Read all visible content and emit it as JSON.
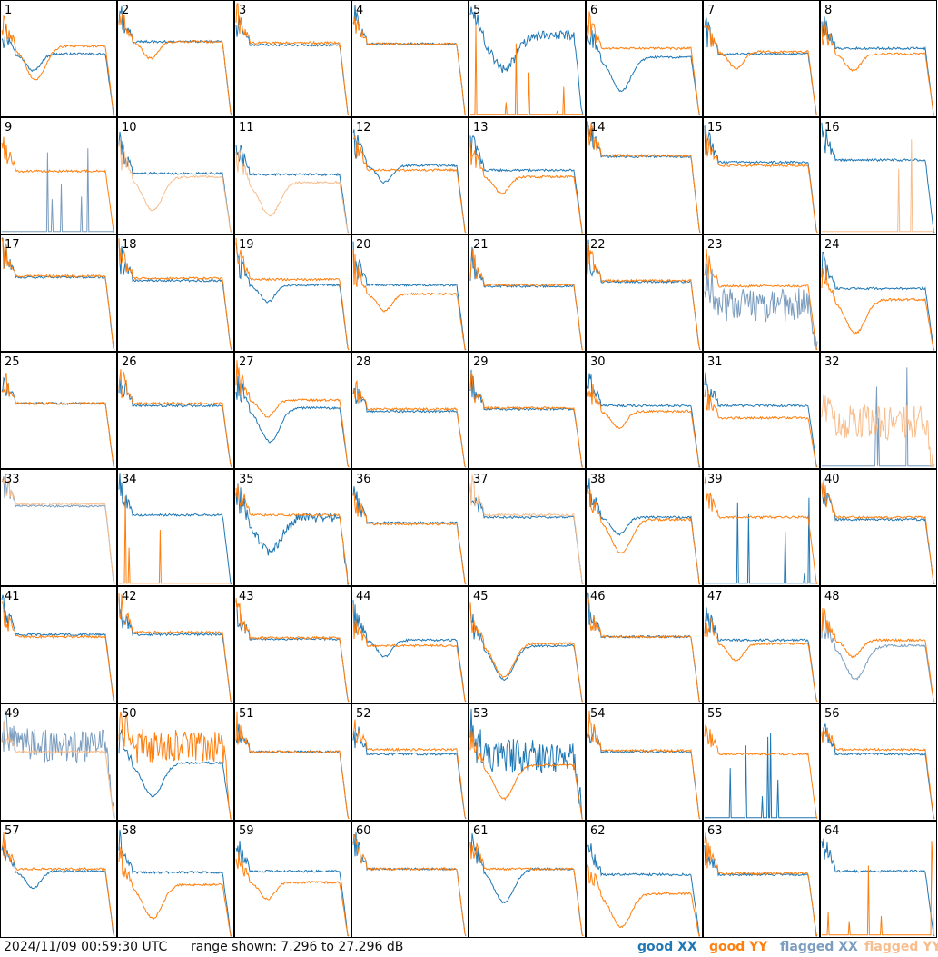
{
  "footer": {
    "timestamp": "2024/11/09 00:59:30 UTC",
    "range": "range shown: 7.296 to 27.296 dB"
  },
  "legend": [
    {
      "label": "good XX",
      "color": "#1f77b4"
    },
    {
      "label": "good YY",
      "color": "#ff7f0e"
    },
    {
      "label": "flagged XX",
      "color": "#7a9cbe"
    },
    {
      "label": "flagged YY",
      "color": "#f7bd8c"
    }
  ],
  "chart_data": {
    "type": "line",
    "grid": "8x8 small multiples",
    "ylim": [
      7.296,
      27.296
    ],
    "yunit": "dB",
    "antennas": [
      {
        "id": "1",
        "xx": "good",
        "yy": "good",
        "x_shape": "dip",
        "y_shape": "deep_dip",
        "x_level": 0.55,
        "y_level": 0.62
      },
      {
        "id": "2",
        "xx": "good",
        "yy": "good",
        "x_shape": "flat",
        "y_shape": "dip",
        "x_level": 0.66,
        "y_level": 0.66
      },
      {
        "id": "3",
        "xx": "good",
        "yy": "good",
        "x_shape": "flat",
        "y_shape": "flat",
        "x_level": 0.63,
        "y_level": 0.65
      },
      {
        "id": "4",
        "xx": "good",
        "yy": "good",
        "x_shape": "flat",
        "y_shape": "flat",
        "x_level": 0.64,
        "y_level": 0.64
      },
      {
        "id": "5",
        "xx": "good",
        "yy": "good",
        "x_shape": "wide_dip_noisy",
        "y_shape": "dead",
        "x_level": 0.72,
        "y_level": 0.0
      },
      {
        "id": "6",
        "xx": "good",
        "yy": "good",
        "x_shape": "deep_dip",
        "y_shape": "flat",
        "x_level": 0.52,
        "y_level": 0.6
      },
      {
        "id": "7",
        "xx": "good",
        "yy": "good",
        "x_shape": "flat",
        "y_shape": "dip",
        "x_level": 0.55,
        "y_level": 0.57
      },
      {
        "id": "8",
        "xx": "good",
        "yy": "good",
        "x_shape": "flat",
        "y_shape": "dip",
        "x_level": 0.6,
        "y_level": 0.55
      },
      {
        "id": "9",
        "xx": "flagged",
        "yy": "good",
        "x_shape": "dead",
        "y_shape": "flat",
        "x_level": 0.0,
        "y_level": 0.55
      },
      {
        "id": "10",
        "xx": "good",
        "yy": "flagged",
        "x_shape": "flat",
        "y_shape": "deep_dip",
        "x_level": 0.53,
        "y_level": 0.5
      },
      {
        "id": "11",
        "xx": "good",
        "yy": "flagged",
        "x_shape": "flat",
        "y_shape": "deep_dip",
        "x_level": 0.52,
        "y_level": 0.45
      },
      {
        "id": "12",
        "xx": "good",
        "yy": "good",
        "x_shape": "dip",
        "y_shape": "flat",
        "x_level": 0.6,
        "y_level": 0.56
      },
      {
        "id": "13",
        "xx": "good",
        "yy": "good",
        "x_shape": "flat",
        "y_shape": "dip",
        "x_level": 0.56,
        "y_level": 0.5
      },
      {
        "id": "14",
        "xx": "good",
        "yy": "good",
        "x_shape": "flat",
        "y_shape": "flat",
        "x_level": 0.68,
        "y_level": 0.69
      },
      {
        "id": "15",
        "xx": "good",
        "yy": "good",
        "x_shape": "flat",
        "y_shape": "flat",
        "x_level": 0.63,
        "y_level": 0.6
      },
      {
        "id": "16",
        "xx": "good",
        "yy": "flagged",
        "x_shape": "flat",
        "y_shape": "dead",
        "x_level": 0.65,
        "y_level": 0.0
      },
      {
        "id": "17",
        "xx": "good",
        "yy": "good",
        "x_shape": "flat",
        "y_shape": "flat",
        "x_level": 0.65,
        "y_level": 0.66
      },
      {
        "id": "18",
        "xx": "good",
        "yy": "good",
        "x_shape": "flat",
        "y_shape": "flat",
        "x_level": 0.62,
        "y_level": 0.64
      },
      {
        "id": "19",
        "xx": "good",
        "yy": "good",
        "x_shape": "dip",
        "y_shape": "flat",
        "x_level": 0.58,
        "y_level": 0.63
      },
      {
        "id": "20",
        "xx": "good",
        "yy": "good",
        "x_shape": "flat",
        "y_shape": "dip",
        "x_level": 0.58,
        "y_level": 0.5
      },
      {
        "id": "21",
        "xx": "good",
        "yy": "good",
        "x_shape": "flat",
        "y_shape": "flat",
        "x_level": 0.57,
        "y_level": 0.58
      },
      {
        "id": "22",
        "xx": "good",
        "yy": "good",
        "x_shape": "flat",
        "y_shape": "flat",
        "x_level": 0.61,
        "y_level": 0.62
      },
      {
        "id": "23",
        "xx": "flagged",
        "yy": "good",
        "x_shape": "noisy",
        "y_shape": "flat",
        "x_level": 0.4,
        "y_level": 0.57
      },
      {
        "id": "24",
        "xx": "good",
        "yy": "good",
        "x_shape": "flat",
        "y_shape": "deep_dip",
        "x_level": 0.55,
        "y_level": 0.45
      },
      {
        "id": "25",
        "xx": "good",
        "yy": "good",
        "x_shape": "flat",
        "y_shape": "flat",
        "x_level": 0.57,
        "y_level": 0.57
      },
      {
        "id": "26",
        "xx": "good",
        "yy": "good",
        "x_shape": "flat",
        "y_shape": "flat",
        "x_level": 0.55,
        "y_level": 0.57
      },
      {
        "id": "27",
        "xx": "good",
        "yy": "good",
        "x_shape": "deep_dip",
        "y_shape": "dip",
        "x_level": 0.53,
        "y_level": 0.6
      },
      {
        "id": "28",
        "xx": "good",
        "yy": "good",
        "x_shape": "flat",
        "y_shape": "flat",
        "x_level": 0.5,
        "y_level": 0.52
      },
      {
        "id": "29",
        "xx": "good",
        "yy": "good",
        "x_shape": "flat",
        "y_shape": "flat",
        "x_level": 0.52,
        "y_level": 0.53
      },
      {
        "id": "30",
        "xx": "good",
        "yy": "good",
        "x_shape": "flat",
        "y_shape": "dip",
        "x_level": 0.55,
        "y_level": 0.5
      },
      {
        "id": "31",
        "xx": "good",
        "yy": "good",
        "x_shape": "flat",
        "y_shape": "flat",
        "x_level": 0.55,
        "y_level": 0.44
      },
      {
        "id": "32",
        "xx": "flagged",
        "yy": "flagged",
        "x_shape": "dead",
        "y_shape": "noisy",
        "x_level": 0.0,
        "y_level": 0.4
      },
      {
        "id": "33",
        "xx": "flagged",
        "yy": "flagged",
        "x_shape": "flat",
        "y_shape": "flat",
        "x_level": 0.7,
        "y_level": 0.72
      },
      {
        "id": "34",
        "xx": "good",
        "yy": "good",
        "x_shape": "flat",
        "y_shape": "dead",
        "x_level": 0.62,
        "y_level": 0.0
      },
      {
        "id": "35",
        "xx": "good",
        "yy": "good",
        "x_shape": "wide_dip_noisy",
        "y_shape": "flat",
        "x_level": 0.6,
        "y_level": 0.62
      },
      {
        "id": "36",
        "xx": "good",
        "yy": "good",
        "x_shape": "flat",
        "y_shape": "flat",
        "x_level": 0.55,
        "y_level": 0.54
      },
      {
        "id": "37",
        "xx": "good",
        "yy": "flagged",
        "x_shape": "flat",
        "y_shape": "flat",
        "x_level": 0.6,
        "y_level": 0.62
      },
      {
        "id": "38",
        "xx": "good",
        "yy": "good",
        "x_shape": "dip",
        "y_shape": "deep_dip",
        "x_level": 0.6,
        "y_level": 0.58
      },
      {
        "id": "39",
        "xx": "good",
        "yy": "good",
        "x_shape": "dead",
        "y_shape": "flat",
        "x_level": 0.0,
        "y_level": 0.6
      },
      {
        "id": "40",
        "xx": "good",
        "yy": "good",
        "x_shape": "flat",
        "y_shape": "flat",
        "x_level": 0.58,
        "y_level": 0.6
      },
      {
        "id": "41",
        "xx": "good",
        "yy": "good",
        "x_shape": "flat",
        "y_shape": "flat",
        "x_level": 0.6,
        "y_level": 0.58
      },
      {
        "id": "42",
        "xx": "good",
        "yy": "good",
        "x_shape": "flat",
        "y_shape": "flat",
        "x_level": 0.6,
        "y_level": 0.62
      },
      {
        "id": "43",
        "xx": "good",
        "yy": "good",
        "x_shape": "flat",
        "y_shape": "flat",
        "x_level": 0.56,
        "y_level": 0.57
      },
      {
        "id": "44",
        "xx": "good",
        "yy": "good",
        "x_shape": "dip",
        "y_shape": "flat",
        "x_level": 0.55,
        "y_level": 0.5
      },
      {
        "id": "45",
        "xx": "good",
        "yy": "good",
        "x_shape": "deep_dip",
        "y_shape": "deep_dip",
        "x_level": 0.5,
        "y_level": 0.52
      },
      {
        "id": "46",
        "xx": "good",
        "yy": "good",
        "x_shape": "flat",
        "y_shape": "flat",
        "x_level": 0.58,
        "y_level": 0.58
      },
      {
        "id": "47",
        "xx": "good",
        "yy": "good",
        "x_shape": "flat",
        "y_shape": "dip",
        "x_level": 0.55,
        "y_level": 0.52
      },
      {
        "id": "48",
        "xx": "flagged",
        "yy": "good",
        "x_shape": "deep_dip",
        "y_shape": "dip",
        "x_level": 0.5,
        "y_level": 0.55
      },
      {
        "id": "49",
        "xx": "flagged",
        "yy": "flagged",
        "x_shape": "noisy",
        "y_shape": "flat",
        "x_level": 0.65,
        "y_level": 0.6
      },
      {
        "id": "50",
        "xx": "good",
        "yy": "good",
        "x_shape": "deep_dip",
        "y_shape": "noisy",
        "x_level": 0.5,
        "y_level": 0.65
      },
      {
        "id": "51",
        "xx": "good",
        "yy": "good",
        "x_shape": "flat",
        "y_shape": "flat",
        "x_level": 0.6,
        "y_level": 0.6
      },
      {
        "id": "52",
        "xx": "good",
        "yy": "good",
        "x_shape": "flat",
        "y_shape": "flat",
        "x_level": 0.58,
        "y_level": 0.62
      },
      {
        "id": "53",
        "xx": "good",
        "yy": "good",
        "x_shape": "noisy",
        "y_shape": "deep_dip",
        "x_level": 0.56,
        "y_level": 0.48
      },
      {
        "id": "54",
        "xx": "good",
        "yy": "good",
        "x_shape": "flat",
        "y_shape": "flat",
        "x_level": 0.6,
        "y_level": 0.61
      },
      {
        "id": "55",
        "xx": "good",
        "yy": "good",
        "x_shape": "dead",
        "y_shape": "flat",
        "x_level": 0.0,
        "y_level": 0.58
      },
      {
        "id": "56",
        "xx": "good",
        "yy": "good",
        "x_shape": "flat",
        "y_shape": "flat",
        "x_level": 0.58,
        "y_level": 0.62
      },
      {
        "id": "57",
        "xx": "good",
        "yy": "good",
        "x_shape": "dip",
        "y_shape": "flat",
        "x_level": 0.58,
        "y_level": 0.6
      },
      {
        "id": "58",
        "xx": "good",
        "yy": "good",
        "x_shape": "flat",
        "y_shape": "deep_dip",
        "x_level": 0.57,
        "y_level": 0.46
      },
      {
        "id": "59",
        "xx": "good",
        "yy": "good",
        "x_shape": "flat",
        "y_shape": "dip",
        "x_level": 0.58,
        "y_level": 0.48
      },
      {
        "id": "60",
        "xx": "good",
        "yy": "good",
        "x_shape": "flat",
        "y_shape": "flat",
        "x_level": 0.6,
        "y_level": 0.6
      },
      {
        "id": "61",
        "xx": "good",
        "yy": "good",
        "x_shape": "deep_dip",
        "y_shape": "flat",
        "x_level": 0.6,
        "y_level": 0.6
      },
      {
        "id": "62",
        "xx": "good",
        "yy": "good",
        "x_shape": "flat",
        "y_shape": "deep_dip",
        "x_level": 0.55,
        "y_level": 0.38
      },
      {
        "id": "63",
        "xx": "good",
        "yy": "good",
        "x_shape": "flat",
        "y_shape": "flat",
        "x_level": 0.55,
        "y_level": 0.56
      },
      {
        "id": "64",
        "xx": "good",
        "yy": "good",
        "x_shape": "flat",
        "y_shape": "dead",
        "x_level": 0.58,
        "y_level": 0.0
      }
    ]
  }
}
